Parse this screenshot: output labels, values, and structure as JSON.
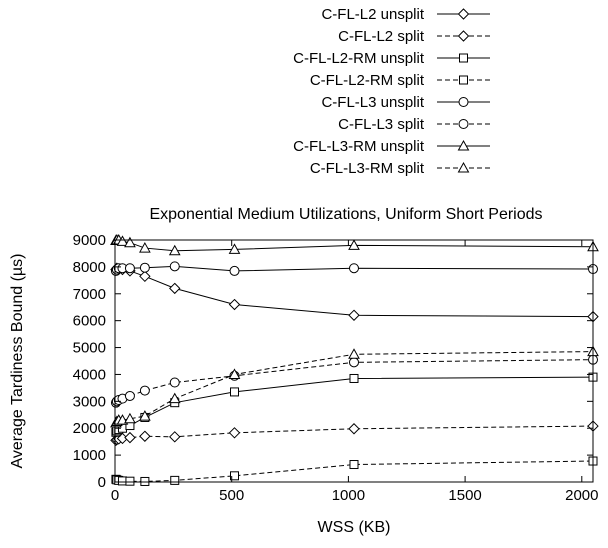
{
  "chart_data": {
    "type": "line",
    "title": "Exponential Medium Utilizations, Uniform Short Periods",
    "xlabel": "WSS (KB)",
    "ylabel": "Average Tardiness Bound (µs)",
    "xlim": [
      0,
      2048
    ],
    "ylim": [
      0,
      9000
    ],
    "xticks": [
      0,
      500,
      1000,
      1500,
      2000
    ],
    "yticks": [
      0,
      1000,
      2000,
      3000,
      4000,
      5000,
      6000,
      7000,
      8000,
      9000
    ],
    "grid": false,
    "legend_position": "top-right, above plot",
    "x": [
      4,
      8,
      16,
      32,
      64,
      128,
      256,
      512,
      1024,
      2048
    ],
    "series": [
      {
        "name": "C-FL-L2 unsplit",
        "marker": "diamond",
        "dash": "solid",
        "values": [
          7900,
          7950,
          7920,
          7900,
          7850,
          7650,
          7200,
          6600,
          6200,
          6150
        ]
      },
      {
        "name": "C-FL-L2 split",
        "marker": "diamond",
        "dash": "dashed",
        "values": [
          1550,
          1580,
          1600,
          1620,
          1650,
          1700,
          1680,
          1830,
          1980,
          2080
        ]
      },
      {
        "name": "C-FL-L2-RM unsplit",
        "marker": "square",
        "dash": "solid",
        "values": [
          1850,
          1900,
          1950,
          2000,
          2100,
          2400,
          2950,
          3350,
          3850,
          3900
        ]
      },
      {
        "name": "C-FL-L2-RM split",
        "marker": "square",
        "dash": "dashed",
        "values": [
          100,
          80,
          60,
          40,
          30,
          20,
          60,
          230,
          650,
          780
        ]
      },
      {
        "name": "C-FL-L3 unsplit",
        "marker": "circle",
        "dash": "solid",
        "values": [
          7850,
          7900,
          7950,
          7950,
          7950,
          7970,
          8020,
          7850,
          7950,
          7920
        ]
      },
      {
        "name": "C-FL-L3 split",
        "marker": "circle",
        "dash": "dashed",
        "values": [
          2950,
          3000,
          3050,
          3100,
          3200,
          3400,
          3700,
          3950,
          4450,
          4550
        ]
      },
      {
        "name": "C-FL-L3-RM unsplit",
        "marker": "triangle",
        "dash": "solid",
        "values": [
          8980,
          9000,
          9000,
          8950,
          8900,
          8700,
          8600,
          8650,
          8800,
          8750
        ]
      },
      {
        "name": "C-FL-L3-RM split",
        "marker": "triangle",
        "dash": "dashed",
        "values": [
          2200,
          2250,
          2300,
          2300,
          2350,
          2450,
          3100,
          4000,
          4750,
          4850
        ]
      }
    ]
  }
}
